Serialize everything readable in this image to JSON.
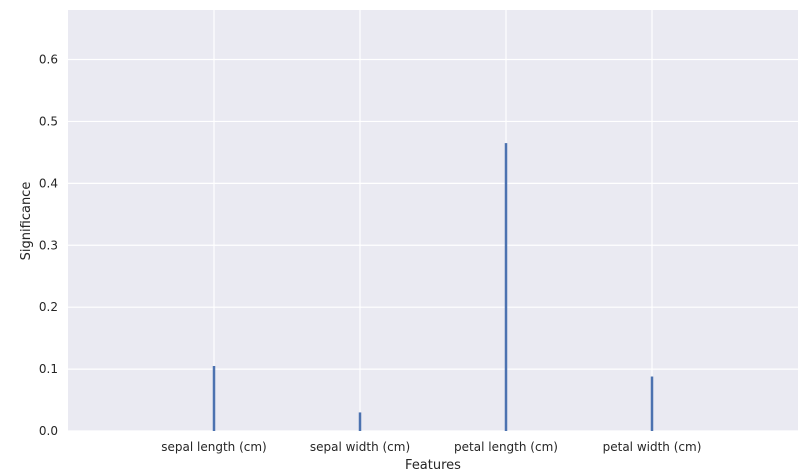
{
  "chart_data": {
    "type": "bar",
    "title": "",
    "xlabel": "Features",
    "ylabel": "Significance",
    "categories": [
      "sepal length (cm)",
      "sepal width (cm)",
      "petal length (cm)",
      "petal width (cm)"
    ],
    "values": [
      0.105,
      0.03,
      0.465,
      0.088
    ],
    "ylim": [
      0,
      0.68
    ],
    "yticks": [
      "0.0",
      "0.1",
      "0.2",
      "0.3",
      "0.4",
      "0.5",
      "0.6"
    ],
    "grid": true,
    "legend": "none",
    "colors": {
      "bar": "#4c72b0",
      "plot_background": "#eaeaf2",
      "grid": "#ffffff",
      "text": "#262626"
    }
  }
}
